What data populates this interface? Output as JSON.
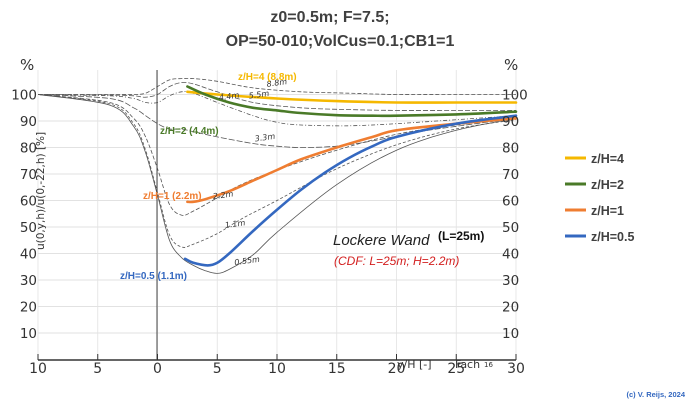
{
  "chart_data": {
    "type": "line",
    "title_line1": "z0=0.5m;  F=7.5;",
    "title_line2": "OP=50-010;VolCus=0.1;CB1=1",
    "ylabel": "u(0,y,h)/u(0,-22,h) [%]",
    "xlabel": "y/H [-]",
    "x_axis_extra_text": "Fach",
    "page_marker": "16",
    "unit_left": "%",
    "unit_right": "%",
    "xlim": [
      -10,
      30
    ],
    "ylim": [
      10,
      110
    ],
    "x_ticks": [
      {
        "v": -10,
        "label": "10"
      },
      {
        "v": -5,
        "label": "5"
      },
      {
        "v": 0,
        "label": "0"
      },
      {
        "v": 5,
        "label": "5"
      },
      {
        "v": 10,
        "label": "10"
      },
      {
        "v": 15,
        "label": "15"
      },
      {
        "v": 20,
        "label": "20"
      },
      {
        "v": 25,
        "label": "25"
      },
      {
        "v": 30,
        "label": "30"
      }
    ],
    "y_ticks": [
      {
        "v": 100,
        "label": "100"
      },
      {
        "v": 90,
        "label": "90"
      },
      {
        "v": 80,
        "label": "80"
      },
      {
        "v": 70,
        "label": "70"
      },
      {
        "v": 60,
        "label": "60"
      },
      {
        "v": 50,
        "label": "50"
      },
      {
        "v": 40,
        "label": "40"
      },
      {
        "v": 30,
        "label": "30"
      },
      {
        "v": 20,
        "label": "20"
      },
      {
        "v": 10,
        "label": "10"
      }
    ],
    "grid": true,
    "legend_position": "right",
    "series": [
      {
        "name": "z/H=4",
        "color": "#f5b800",
        "x": [
          2.5,
          5,
          10,
          15,
          20,
          25,
          30
        ],
        "y": [
          101,
          100,
          98.5,
          97.5,
          97,
          97,
          97
        ]
      },
      {
        "name": "z/H=2",
        "color": "#4a7a28",
        "x": [
          2.5,
          4,
          6,
          8,
          10,
          12,
          15,
          18,
          20,
          25,
          30
        ],
        "y": [
          103,
          100,
          97,
          95,
          94,
          93,
          92.2,
          92,
          92,
          92.5,
          93.5
        ]
      },
      {
        "name": "z/H=1",
        "color": "#ef7d31",
        "x": [
          2.5,
          3,
          4,
          6,
          8,
          10,
          12,
          15,
          18,
          20,
          25,
          30
        ],
        "y": [
          59.5,
          59.5,
          60.5,
          63.5,
          67.5,
          71.5,
          75.5,
          80,
          84,
          86.5,
          89,
          91
        ]
      },
      {
        "name": "z/H=0.5",
        "color": "#3468c0",
        "x": [
          2.3,
          3,
          4.2,
          5,
          6,
          8,
          10,
          12,
          14,
          16,
          18,
          20,
          25,
          30
        ],
        "y": [
          38,
          36.5,
          35.5,
          36.5,
          40,
          48.5,
          56.5,
          64,
          70.5,
          76,
          80.5,
          84,
          89,
          92
        ]
      }
    ],
    "background_curves": [
      {
        "label": "8.8m",
        "x": [
          -10,
          -4,
          -2,
          -1,
          0,
          1,
          2,
          3,
          5,
          8,
          12,
          16,
          20,
          25,
          30
        ],
        "y": [
          100,
          100,
          100,
          100.5,
          103,
          105.5,
          106,
          106,
          105,
          102.5,
          101,
          100.5,
          100,
          100,
          100
        ]
      },
      {
        "label": "5.5m",
        "x": [
          -10,
          -4,
          -2,
          -1,
          0,
          1,
          2,
          3,
          5,
          8,
          12,
          16,
          20,
          25,
          30
        ],
        "y": [
          100,
          99.8,
          99.5,
          99,
          100,
          103,
          104.5,
          104,
          101,
          97,
          95,
          94.3,
          94,
          94,
          94
        ]
      },
      {
        "label": "4.4m",
        "x": [
          -10,
          -4,
          -2,
          -1,
          0,
          1,
          2,
          3,
          5,
          8,
          10,
          12,
          16,
          20,
          25,
          30
        ],
        "y": [
          100,
          99.5,
          98.5,
          97,
          97,
          99.5,
          101,
          100.5,
          97,
          92,
          89.5,
          88.5,
          88.2,
          89,
          90.5,
          92
        ]
      },
      {
        "label": "3.3m",
        "x": [
          -10,
          -4,
          -2,
          -1,
          0,
          1,
          2,
          3,
          5,
          8,
          10,
          12,
          15,
          18,
          22,
          25,
          30
        ],
        "y": [
          100,
          98.5,
          95,
          92,
          89,
          87,
          87,
          86,
          84,
          81.5,
          80.5,
          80,
          80.5,
          82.5,
          86,
          88,
          91
        ]
      },
      {
        "label": "2.2m",
        "x": [
          -10,
          -4,
          -2,
          -1,
          0,
          1,
          2,
          3,
          5,
          7,
          10,
          15,
          20,
          25,
          30
        ],
        "y": [
          100,
          97,
          91,
          84,
          72,
          58.5,
          54.5,
          56,
          61,
          66,
          71.5,
          79,
          85,
          88.5,
          91
        ]
      },
      {
        "label": "1.1m",
        "x": [
          -10,
          -4,
          -2,
          -1,
          0,
          1,
          2,
          3,
          5,
          7,
          10,
          15,
          20,
          25,
          30
        ],
        "y": [
          100,
          96.5,
          89,
          79,
          63,
          47,
          42.5,
          43.5,
          47.5,
          53,
          60,
          72,
          81,
          87,
          90.5
        ]
      },
      {
        "label": "0.55m",
        "x": [
          -10,
          -4,
          -2,
          -1,
          0,
          1,
          2,
          3,
          4,
          5,
          6,
          8,
          10,
          15,
          20,
          25,
          30
        ],
        "y": [
          100,
          96,
          88,
          78,
          62,
          45,
          38.5,
          35.5,
          33.5,
          32.5,
          34,
          39.5,
          48,
          66,
          79,
          86.5,
          91
        ]
      }
    ],
    "annotations": [
      {
        "text": "z/H=4  (8.8m)",
        "color": "#f5b800"
      },
      {
        "text": "z/H=2  (4.4m)",
        "color": "#4a7a28"
      },
      {
        "text": "z/H=1  (2.2m)",
        "color": "#ef7d31"
      },
      {
        "text": "z/H=0.5  (1.1m)",
        "color": "#3468c0"
      },
      {
        "text": "Lockere Wand",
        "color": "#222222"
      },
      {
        "text": "(L=25m)",
        "color": "#111111"
      },
      {
        "text": "(CDF: L=25m; H=2.2m)",
        "color": "#d32020"
      }
    ],
    "copyright": "(c) V. Reijs, 2024"
  }
}
